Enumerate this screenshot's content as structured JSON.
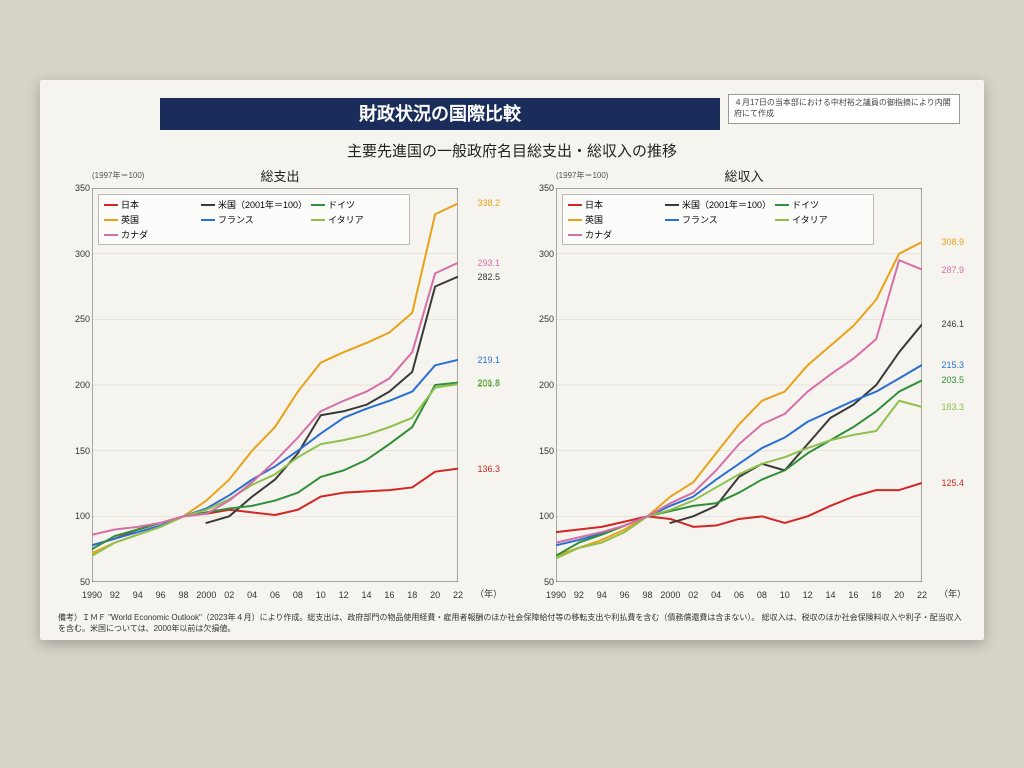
{
  "doc": {
    "title": "財政状況の国際比較",
    "title_bg": "#1a2d5a",
    "subtitle": "主要先進国の一般政府名目総支出・総収入の推移",
    "side_note": "４月17日の当本部における中村裕之議員の御指摘により内閣府にて作成",
    "footnote": "備考）ＩＭＦ \"World Economic Outlook\"（2023年４月）により作成。総支出は、政府部門の物品使用経費・雇用者報酬のほか社会保障給付等の移転支出や利払費を含む（債務償還費は含まない）。\n総収入は、税収のほか社会保険料収入や利子・配当収入を含む。米国については、2000年以前は欠損値。",
    "background": "#f6f4ee",
    "grid_color": "#cfcabb",
    "axis_color": "#222222"
  },
  "axis": {
    "years": [
      1990,
      1992,
      1994,
      1996,
      1998,
      2000,
      2002,
      2004,
      2006,
      2008,
      2010,
      2012,
      2014,
      2016,
      2018,
      2020,
      2022
    ],
    "x_labels": [
      "1990",
      "92",
      "94",
      "96",
      "98",
      "2000",
      "02",
      "04",
      "06",
      "08",
      "10",
      "12",
      "14",
      "16",
      "18",
      "20",
      "22"
    ],
    "x_unit": "（年）",
    "ymin": 50,
    "ymax": 350,
    "ystep": 50,
    "index_note": "(1997年＝100)"
  },
  "series_meta": [
    {
      "key": "japan",
      "name": "日本",
      "color": "#d22626"
    },
    {
      "key": "usa",
      "name": "米国（2001年＝100）",
      "color": "#3a3a3a"
    },
    {
      "key": "germany",
      "name": "ドイツ",
      "color": "#2f8f3a"
    },
    {
      "key": "uk",
      "name": "英国",
      "color": "#e8a21a"
    },
    {
      "key": "france",
      "name": "フランス",
      "color": "#2a6fd4"
    },
    {
      "key": "italy",
      "name": "イタリア",
      "color": "#8fbf4d"
    },
    {
      "key": "canada",
      "name": "カナダ",
      "color": "#d66fa8"
    }
  ],
  "legend_order": [
    "japan",
    "usa",
    "germany",
    "uk",
    "france",
    "italy",
    "canada"
  ],
  "panels": [
    {
      "title": "総支出",
      "end_labels": [
        {
          "key": "uk",
          "value": "338.2",
          "color": "#e8a21a"
        },
        {
          "key": "canada",
          "value": "293.1",
          "color": "#d66fa8"
        },
        {
          "key": "usa",
          "value": "282.5",
          "color": "#3a3a3a"
        },
        {
          "key": "france",
          "value": "219.1",
          "color": "#2a6fd4"
        },
        {
          "key": "germany",
          "value": "201.8",
          "color": "#2f8f3a"
        },
        {
          "key": "italy",
          "value": "200.7",
          "color": "#8fbf4d"
        },
        {
          "key": "japan",
          "value": "136.3",
          "color": "#d22626"
        }
      ],
      "data": {
        "japan": [
          78,
          83,
          90,
          95,
          100,
          102,
          105,
          103,
          101,
          105,
          115,
          118,
          119,
          120,
          122,
          134,
          136.3
        ],
        "uk": [
          72,
          80,
          86,
          92,
          100,
          112,
          128,
          150,
          168,
          195,
          217,
          225,
          232,
          240,
          255,
          330,
          338.2
        ],
        "usa": [
          null,
          null,
          null,
          null,
          null,
          95,
          100,
          115,
          128,
          148,
          177,
          180,
          185,
          195,
          210,
          275,
          282.5
        ],
        "france": [
          78,
          83,
          88,
          93,
          100,
          106,
          116,
          128,
          138,
          150,
          163,
          175,
          182,
          188,
          195,
          215,
          219.1
        ],
        "germany": [
          75,
          85,
          90,
          95,
          100,
          103,
          106,
          108,
          112,
          118,
          130,
          135,
          143,
          155,
          168,
          200,
          201.8
        ],
        "italy": [
          70,
          80,
          86,
          92,
          100,
          105,
          113,
          124,
          132,
          145,
          155,
          158,
          162,
          168,
          175,
          198,
          200.7
        ],
        "canada": [
          86,
          90,
          92,
          95,
          100,
          102,
          112,
          126,
          142,
          160,
          180,
          188,
          195,
          205,
          225,
          285,
          293.1
        ]
      }
    },
    {
      "title": "総収入",
      "end_labels": [
        {
          "key": "uk",
          "value": "308.9",
          "color": "#e8a21a"
        },
        {
          "key": "canada",
          "value": "287.9",
          "color": "#d66fa8"
        },
        {
          "key": "usa",
          "value": "246.1",
          "color": "#3a3a3a"
        },
        {
          "key": "france",
          "value": "215.3",
          "color": "#2a6fd4"
        },
        {
          "key": "germany",
          "value": "203.5",
          "color": "#2f8f3a"
        },
        {
          "key": "italy",
          "value": "183.3",
          "color": "#8fbf4d"
        },
        {
          "key": "japan",
          "value": "125.4",
          "color": "#d22626"
        }
      ],
      "data": {
        "japan": [
          88,
          90,
          92,
          96,
          100,
          98,
          92,
          93,
          98,
          100,
          95,
          100,
          108,
          115,
          120,
          120,
          125.4
        ],
        "uk": [
          70,
          76,
          82,
          90,
          100,
          115,
          126,
          148,
          170,
          188,
          195,
          215,
          230,
          245,
          265,
          300,
          308.9
        ],
        "usa": [
          null,
          null,
          null,
          null,
          null,
          95,
          100,
          108,
          130,
          140,
          135,
          155,
          175,
          185,
          200,
          225,
          246.1
        ],
        "france": [
          78,
          82,
          87,
          93,
          100,
          108,
          115,
          128,
          140,
          152,
          160,
          172,
          180,
          188,
          195,
          205,
          215.3
        ],
        "germany": [
          70,
          80,
          86,
          93,
          100,
          104,
          108,
          110,
          118,
          128,
          135,
          148,
          158,
          168,
          180,
          195,
          203.5
        ],
        "italy": [
          68,
          76,
          80,
          88,
          100,
          105,
          112,
          122,
          132,
          140,
          145,
          152,
          158,
          162,
          165,
          188,
          183.3
        ],
        "canada": [
          80,
          84,
          88,
          93,
          100,
          110,
          118,
          135,
          155,
          170,
          178,
          195,
          208,
          220,
          235,
          295,
          287.9
        ]
      }
    }
  ]
}
